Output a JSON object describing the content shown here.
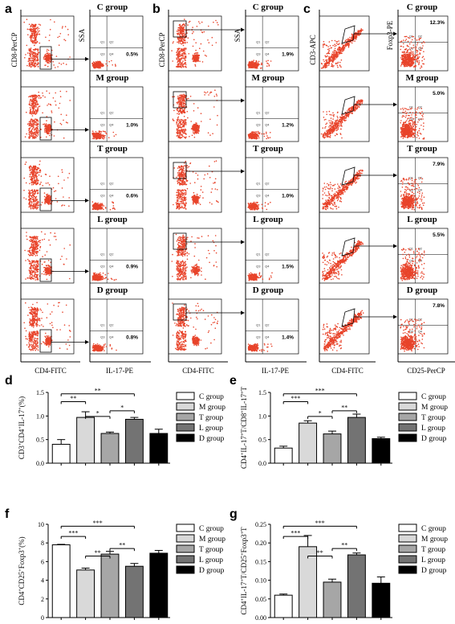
{
  "panel_labels": [
    "a",
    "b",
    "c",
    "d",
    "e",
    "f",
    "g"
  ],
  "groups": [
    "C group",
    "M group",
    "T group",
    "L group",
    "D group"
  ],
  "colors": {
    "dots": "#e8442b",
    "bars": [
      "#ffffff",
      "#d9d9d9",
      "#a6a6a6",
      "#737373",
      "#000000"
    ]
  },
  "flow": {
    "a": {
      "left_y": "CD8-PerCP",
      "left_x": "CD4-FITC",
      "right_y": "SSA",
      "right_x": "IL-17-PE",
      "percents": [
        "0.5%",
        "1.0%",
        "0.6%",
        "0.9%",
        "0.8%"
      ]
    },
    "b": {
      "left_y": "CD8-PerCP",
      "left_x": "CD4-FITC",
      "right_y": "SSA",
      "right_x": "IL-17-PE",
      "percents": [
        "1.9%",
        "1.2%",
        "1.0%",
        "1.5%",
        "1.4%"
      ]
    },
    "c": {
      "left_y": "CD3-APC",
      "left_x": "CD4-FITC",
      "right_y": "Foxp3-PE",
      "right_x": "CD25-PerCP",
      "percents": [
        "12.3%",
        "5.0%",
        "7.9%",
        "5.5%",
        "7.8%"
      ]
    },
    "quadrants": [
      "Q1",
      "Q2",
      "Q3",
      "Q4"
    ]
  },
  "chart_data": [
    {
      "panel": "d",
      "type": "bar",
      "categories": [
        "C group",
        "M group",
        "T group",
        "L group",
        "D group"
      ],
      "values": [
        0.4,
        0.97,
        0.63,
        0.93,
        0.63
      ],
      "errors": [
        0.1,
        0.12,
        0.03,
        0.04,
        0.09
      ],
      "ylabel": "CD3+CD4+IL-17+(%)",
      "ylim": [
        0,
        1.5
      ],
      "yticks": [
        "0.0",
        "0.5",
        "1.0",
        "1.5"
      ],
      "significance": [
        [
          "C group",
          "M group",
          "**"
        ],
        [
          "C group",
          "L group",
          "**"
        ],
        [
          "M group",
          "T group",
          "*"
        ],
        [
          "T group",
          "L group",
          "*"
        ]
      ]
    },
    {
      "panel": "e",
      "type": "bar",
      "categories": [
        "C group",
        "M group",
        "T group",
        "L group",
        "D group"
      ],
      "values": [
        0.32,
        0.85,
        0.62,
        0.97,
        0.52
      ],
      "errors": [
        0.04,
        0.05,
        0.06,
        0.07,
        0.03
      ],
      "ylabel": "CD4+IL-17+T/CD8+IL-17+T",
      "ylim": [
        0,
        1.5
      ],
      "yticks": [
        "0.0",
        "0.5",
        "1.0",
        "1.5"
      ],
      "significance": [
        [
          "C group",
          "M group",
          "***"
        ],
        [
          "C group",
          "L group",
          "***"
        ],
        [
          "M group",
          "T group",
          "*"
        ],
        [
          "T group",
          "L group",
          "**"
        ]
      ]
    },
    {
      "panel": "f",
      "type": "bar",
      "categories": [
        "C group",
        "M group",
        "T group",
        "L group",
        "D group"
      ],
      "values": [
        7.8,
        5.1,
        6.8,
        5.5,
        6.9
      ],
      "errors": [
        0.05,
        0.2,
        0.3,
        0.3,
        0.3
      ],
      "ylabel": "CD4+CD25+Foxp3+(%)",
      "ylim": [
        0,
        10
      ],
      "yticks": [
        "0",
        "2",
        "4",
        "6",
        "8",
        "10"
      ],
      "significance": [
        [
          "C group",
          "M group",
          "***"
        ],
        [
          "C group",
          "L group",
          "***"
        ],
        [
          "M group",
          "T group",
          "**"
        ],
        [
          "T group",
          "L group",
          "**"
        ]
      ]
    },
    {
      "panel": "g",
      "type": "bar",
      "categories": [
        "C group",
        "M group",
        "T group",
        "L group",
        "D group"
      ],
      "values": [
        0.06,
        0.19,
        0.095,
        0.168,
        0.092
      ],
      "errors": [
        0.003,
        0.03,
        0.008,
        0.005,
        0.017
      ],
      "ylabel": "CD4+IL-17+T/CD25+Foxp3+T",
      "ylim": [
        0,
        0.25
      ],
      "yticks": [
        "0.00",
        "0.05",
        "0.10",
        "0.15",
        "0.20",
        "0.25"
      ],
      "significance": [
        [
          "C group",
          "M group",
          "***"
        ],
        [
          "C group",
          "L group",
          "***"
        ],
        [
          "M group",
          "T group",
          "**"
        ],
        [
          "T group",
          "L group",
          "**"
        ]
      ]
    }
  ]
}
